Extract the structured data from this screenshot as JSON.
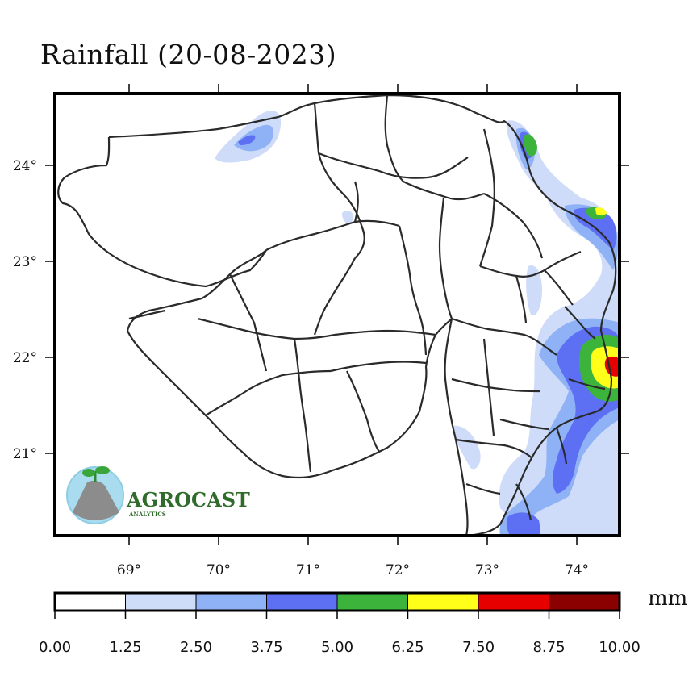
{
  "title": "Rainfall (20-08-2023)",
  "map": {
    "lon_ticks": [
      "69°",
      "70°",
      "71°",
      "72°",
      "73°",
      "74°"
    ],
    "lat_ticks": [
      "24°",
      "23°",
      "22°",
      "21°"
    ]
  },
  "colorbar": {
    "unit": "mm",
    "ticks": [
      "0.00",
      "1.25",
      "2.50",
      "3.75",
      "5.00",
      "6.25",
      "7.50",
      "8.75",
      "10.00"
    ],
    "colors": [
      "#ffffff",
      "#cfdcf9",
      "#8fb1f5",
      "#5d6ff2",
      "#3cb43c",
      "#ffff1a",
      "#e60000",
      "#8b0000"
    ]
  },
  "rain_colors": {
    "light": "#cfdcf9",
    "mid": "#8fb1f5",
    "blue": "#5d6ff2",
    "green": "#3cb43c",
    "yellow": "#ffff1a",
    "red": "#e60000"
  },
  "logo": {
    "brand": "AGROCAST",
    "tagline": "ANALYTICS"
  }
}
